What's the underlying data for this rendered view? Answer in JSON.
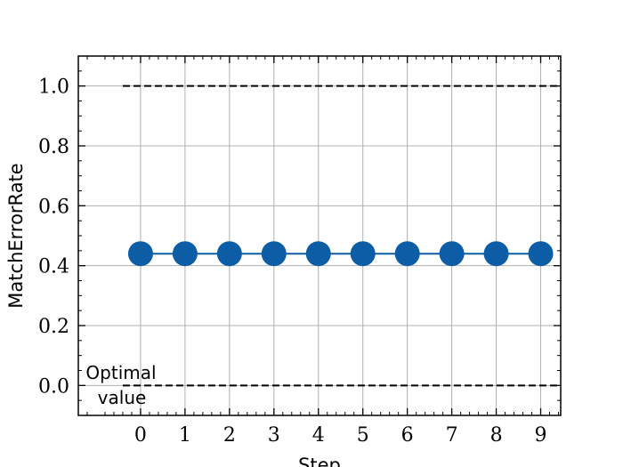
{
  "chart_data": {
    "type": "line",
    "xlabel": "Step",
    "ylabel": "MatchErrorRate",
    "xlim": [
      -1.4,
      9.45
    ],
    "ylim": [
      -0.1,
      1.1
    ],
    "x_ticks": [
      0,
      1,
      2,
      3,
      4,
      5,
      6,
      7,
      8,
      9
    ],
    "y_ticks": [
      0.0,
      0.2,
      0.4,
      0.6,
      0.8,
      1.0
    ],
    "y_tick_labels": [
      "0.0",
      "0.2",
      "0.4",
      "0.6",
      "0.8",
      "1.0"
    ],
    "grid": true,
    "series": [
      {
        "x": [
          0,
          1,
          2,
          3,
          4,
          5,
          6,
          7,
          8,
          9
        ],
        "values": [
          0.44,
          0.44,
          0.44,
          0.44,
          0.44,
          0.44,
          0.44,
          0.44,
          0.44,
          0.44
        ],
        "color": "#0C5DA5",
        "marker": "circle"
      }
    ],
    "reference_lines": [
      {
        "y": 1.0,
        "style": "dashed",
        "color": "#000000",
        "x_start": -0.4,
        "x_end": 9.45
      },
      {
        "y": 0.0,
        "style": "dashed",
        "color": "#000000",
        "x_start": -0.4,
        "x_end": 9.45
      }
    ],
    "annotations": [
      {
        "line1": "Optimal",
        "line2": "value"
      }
    ]
  }
}
